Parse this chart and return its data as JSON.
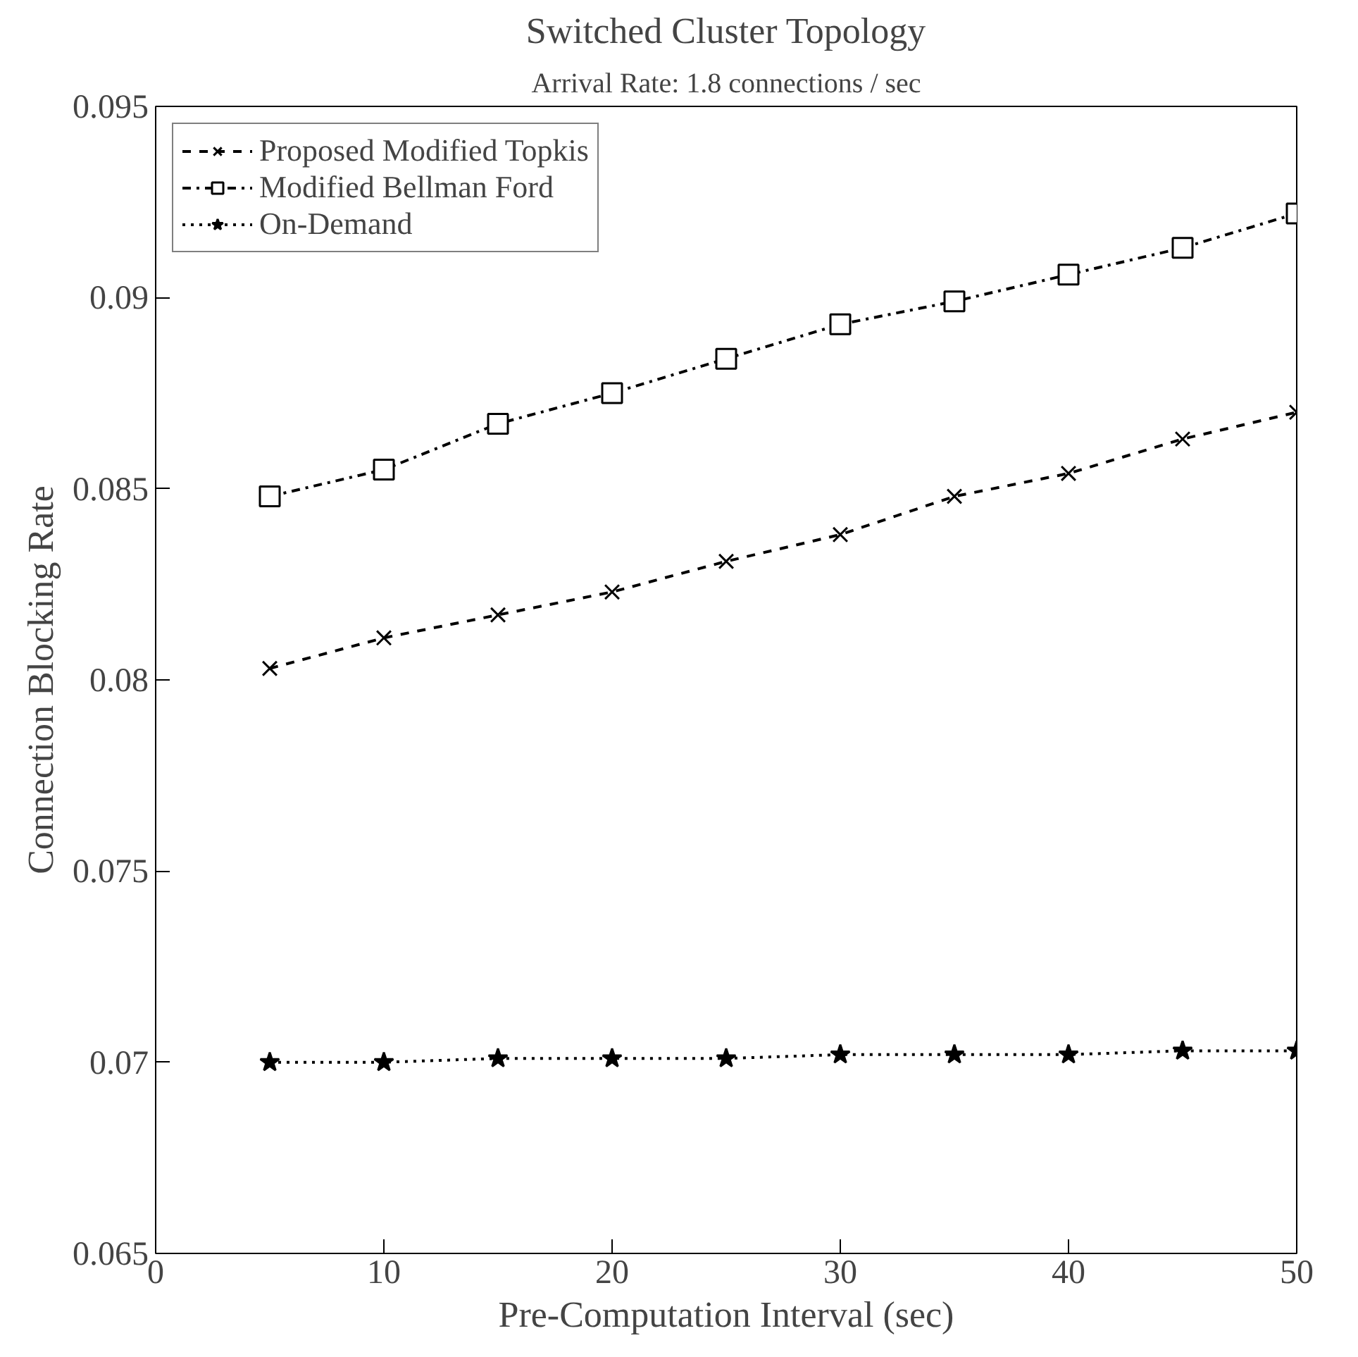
{
  "chart_data": {
    "type": "line",
    "title": "Switched Cluster Topology",
    "subtitle": "Arrival Rate: 1.8 connections / sec",
    "xlabel": "Pre-Computation Interval (sec)",
    "ylabel": "Connection Blocking Rate",
    "x": [
      5,
      10,
      15,
      20,
      25,
      30,
      35,
      40,
      45,
      50
    ],
    "series": [
      {
        "name": "Proposed Modified Topkis",
        "color": "#000000",
        "marker": "cross",
        "line_style": "dashed",
        "values": [
          0.0803,
          0.0811,
          0.0817,
          0.0823,
          0.0831,
          0.0838,
          0.0848,
          0.0854,
          0.0863,
          0.087
        ]
      },
      {
        "name": "Modified Bellman Ford",
        "color": "#000000",
        "marker": "square",
        "line_style": "dashdot",
        "values": [
          0.0848,
          0.0855,
          0.0867,
          0.0875,
          0.0884,
          0.0893,
          0.0899,
          0.0906,
          0.0913,
          0.0922
        ]
      },
      {
        "name": "On-Demand",
        "color": "#000000",
        "marker": "star",
        "line_style": "dotted",
        "values": [
          0.07,
          0.07,
          0.0701,
          0.0701,
          0.0701,
          0.0702,
          0.0702,
          0.0702,
          0.0703,
          0.0703
        ]
      }
    ],
    "xlim": [
      0,
      50
    ],
    "ylim": [
      0.065,
      0.095
    ],
    "xticks": [
      0,
      10,
      20,
      30,
      40,
      50
    ],
    "yticks": [
      0.065,
      0.07,
      0.075,
      0.08,
      0.085,
      0.09,
      0.095
    ],
    "grid": false,
    "legend": "top left"
  }
}
